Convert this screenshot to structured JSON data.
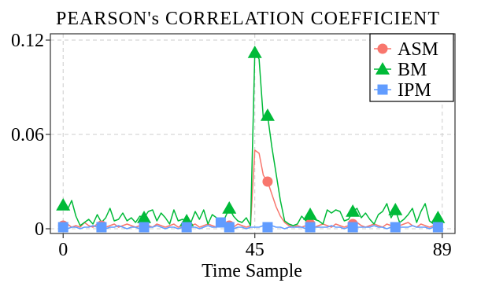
{
  "chart_data": {
    "type": "line",
    "title": "PEARSON's CORRELATION COEFFICIENT",
    "xlabel": "Time Sample",
    "ylabel": "",
    "xlim": [
      -3,
      92
    ],
    "ylim": [
      -0.003,
      0.124
    ],
    "x_ticks": [
      0,
      45,
      89
    ],
    "x_tick_labels": [
      "0",
      "45",
      "89"
    ],
    "y_ticks": [
      0,
      0.06,
      0.12
    ],
    "y_tick_labels": [
      "0",
      "0.06",
      "0.12"
    ],
    "grid": "on (dashed)",
    "legend_position": "top-right",
    "x": [
      0,
      1,
      2,
      3,
      4,
      5,
      6,
      7,
      8,
      9,
      10,
      11,
      12,
      13,
      14,
      15,
      16,
      17,
      18,
      19,
      20,
      21,
      22,
      23,
      24,
      25,
      26,
      27,
      28,
      29,
      30,
      31,
      32,
      33,
      34,
      35,
      36,
      37,
      38,
      39,
      40,
      41,
      42,
      43,
      44,
      45,
      46,
      47,
      48,
      49,
      50,
      51,
      52,
      53,
      54,
      55,
      56,
      57,
      58,
      59,
      60,
      61,
      62,
      63,
      64,
      65,
      66,
      67,
      68,
      69,
      70,
      71,
      72,
      73,
      74,
      75,
      76,
      77,
      78,
      79,
      80,
      81,
      82,
      83,
      84,
      85,
      86,
      87,
      88,
      89
    ],
    "series": [
      {
        "name": "ASM",
        "color": "#F8766D",
        "marker": "circle",
        "marker_x": [
          0,
          9,
          19,
          29,
          39,
          48,
          58,
          68,
          78,
          88
        ],
        "values": [
          0.002,
          0.003,
          0.001,
          0.002,
          0.001,
          0.004,
          0.002,
          0.001,
          0.003,
          0.002,
          0.001,
          0.002,
          0.003,
          0.001,
          0.002,
          0.003,
          0.002,
          0.001,
          0.002,
          0.003,
          0.002,
          0.001,
          0.003,
          0.002,
          0.001,
          0.002,
          0.003,
          0.001,
          0.002,
          0.001,
          0.002,
          0.003,
          0.001,
          0.002,
          0.003,
          0.002,
          0.001,
          0.002,
          0.003,
          0.002,
          0.001,
          0.003,
          0.002,
          0.001,
          0.002,
          0.05,
          0.048,
          0.034,
          0.03,
          0.022,
          0.014,
          0.008,
          0.004,
          0.002,
          0.001,
          0.002,
          0.001,
          0.002,
          0.003,
          0.001,
          0.002,
          0.003,
          0.002,
          0.001,
          0.003,
          0.002,
          0.001,
          0.002,
          0.003,
          0.004,
          0.002,
          0.001,
          0.002,
          0.003,
          0.002,
          0.001,
          0.003,
          0.002,
          0.001,
          0.002,
          0.003,
          0.004,
          0.002,
          0.001,
          0.003,
          0.002,
          0.001,
          0.002,
          0.003,
          0.002
        ]
      },
      {
        "name": "BM",
        "color": "#00BA38",
        "marker": "triangle",
        "marker_x": [
          0,
          19,
          29,
          39,
          45,
          48,
          58,
          68,
          78,
          88
        ],
        "values": [
          0.015,
          0.012,
          0.018,
          0.008,
          0.002,
          0.004,
          0.006,
          0.003,
          0.009,
          0.004,
          0.007,
          0.013,
          0.005,
          0.006,
          0.01,
          0.005,
          0.007,
          0.004,
          0.008,
          0.007,
          0.011,
          0.012,
          0.005,
          0.01,
          0.007,
          0.003,
          0.012,
          0.005,
          0.006,
          0.005,
          0.004,
          0.011,
          0.006,
          0.012,
          0.003,
          0.009,
          0.007,
          0.006,
          0.007,
          0.013,
          0.008,
          0.005,
          0.004,
          0.007,
          0.002,
          0.112,
          0.108,
          0.07,
          0.072,
          0.052,
          0.035,
          0.018,
          0.005,
          0.003,
          0.002,
          0.003,
          0.008,
          0.005,
          0.009,
          0.006,
          0.005,
          0.003,
          0.012,
          0.01,
          0.012,
          0.011,
          0.005,
          0.006,
          0.011,
          0.013,
          0.007,
          0.01,
          0.006,
          0.003,
          0.009,
          0.011,
          0.016,
          0.007,
          0.012,
          0.004,
          0.006,
          0.009,
          0.013,
          0.004,
          0.011,
          0.016,
          0.005,
          0.003,
          0.007,
          0.006
        ]
      },
      {
        "name": "IPM",
        "color": "#619CFF",
        "marker": "square",
        "marker_x": [
          0,
          9,
          19,
          29,
          37,
          39,
          48,
          58,
          68,
          78,
          88
        ],
        "values": [
          0.001,
          0.0,
          0.001,
          0.001,
          0.0,
          0.001,
          0.001,
          0.002,
          0.001,
          0.001,
          0.0,
          0.001,
          0.001,
          0.002,
          0.001,
          0.0,
          0.001,
          0.001,
          0.0,
          0.001,
          0.001,
          0.001,
          0.002,
          0.001,
          0.0,
          0.001,
          0.001,
          0.0,
          0.001,
          0.001,
          0.001,
          0.001,
          0.0,
          0.001,
          0.002,
          0.001,
          0.001,
          0.004,
          0.001,
          0.001,
          0.0,
          0.001,
          0.001,
          0.0,
          0.001,
          0.001,
          0.001,
          0.002,
          0.001,
          0.002,
          0.001,
          0.001,
          0.0,
          0.001,
          0.001,
          0.001,
          0.001,
          0.0,
          0.001,
          0.001,
          0.001,
          0.001,
          0.001,
          0.002,
          0.001,
          0.001,
          0.0,
          0.001,
          0.001,
          0.001,
          0.001,
          0.001,
          0.001,
          0.002,
          0.001,
          0.001,
          0.0,
          0.001,
          0.001,
          0.001,
          0.001,
          0.001,
          0.002,
          0.001,
          0.001,
          0.001,
          0.0,
          0.001,
          0.001,
          0.001
        ]
      }
    ]
  }
}
